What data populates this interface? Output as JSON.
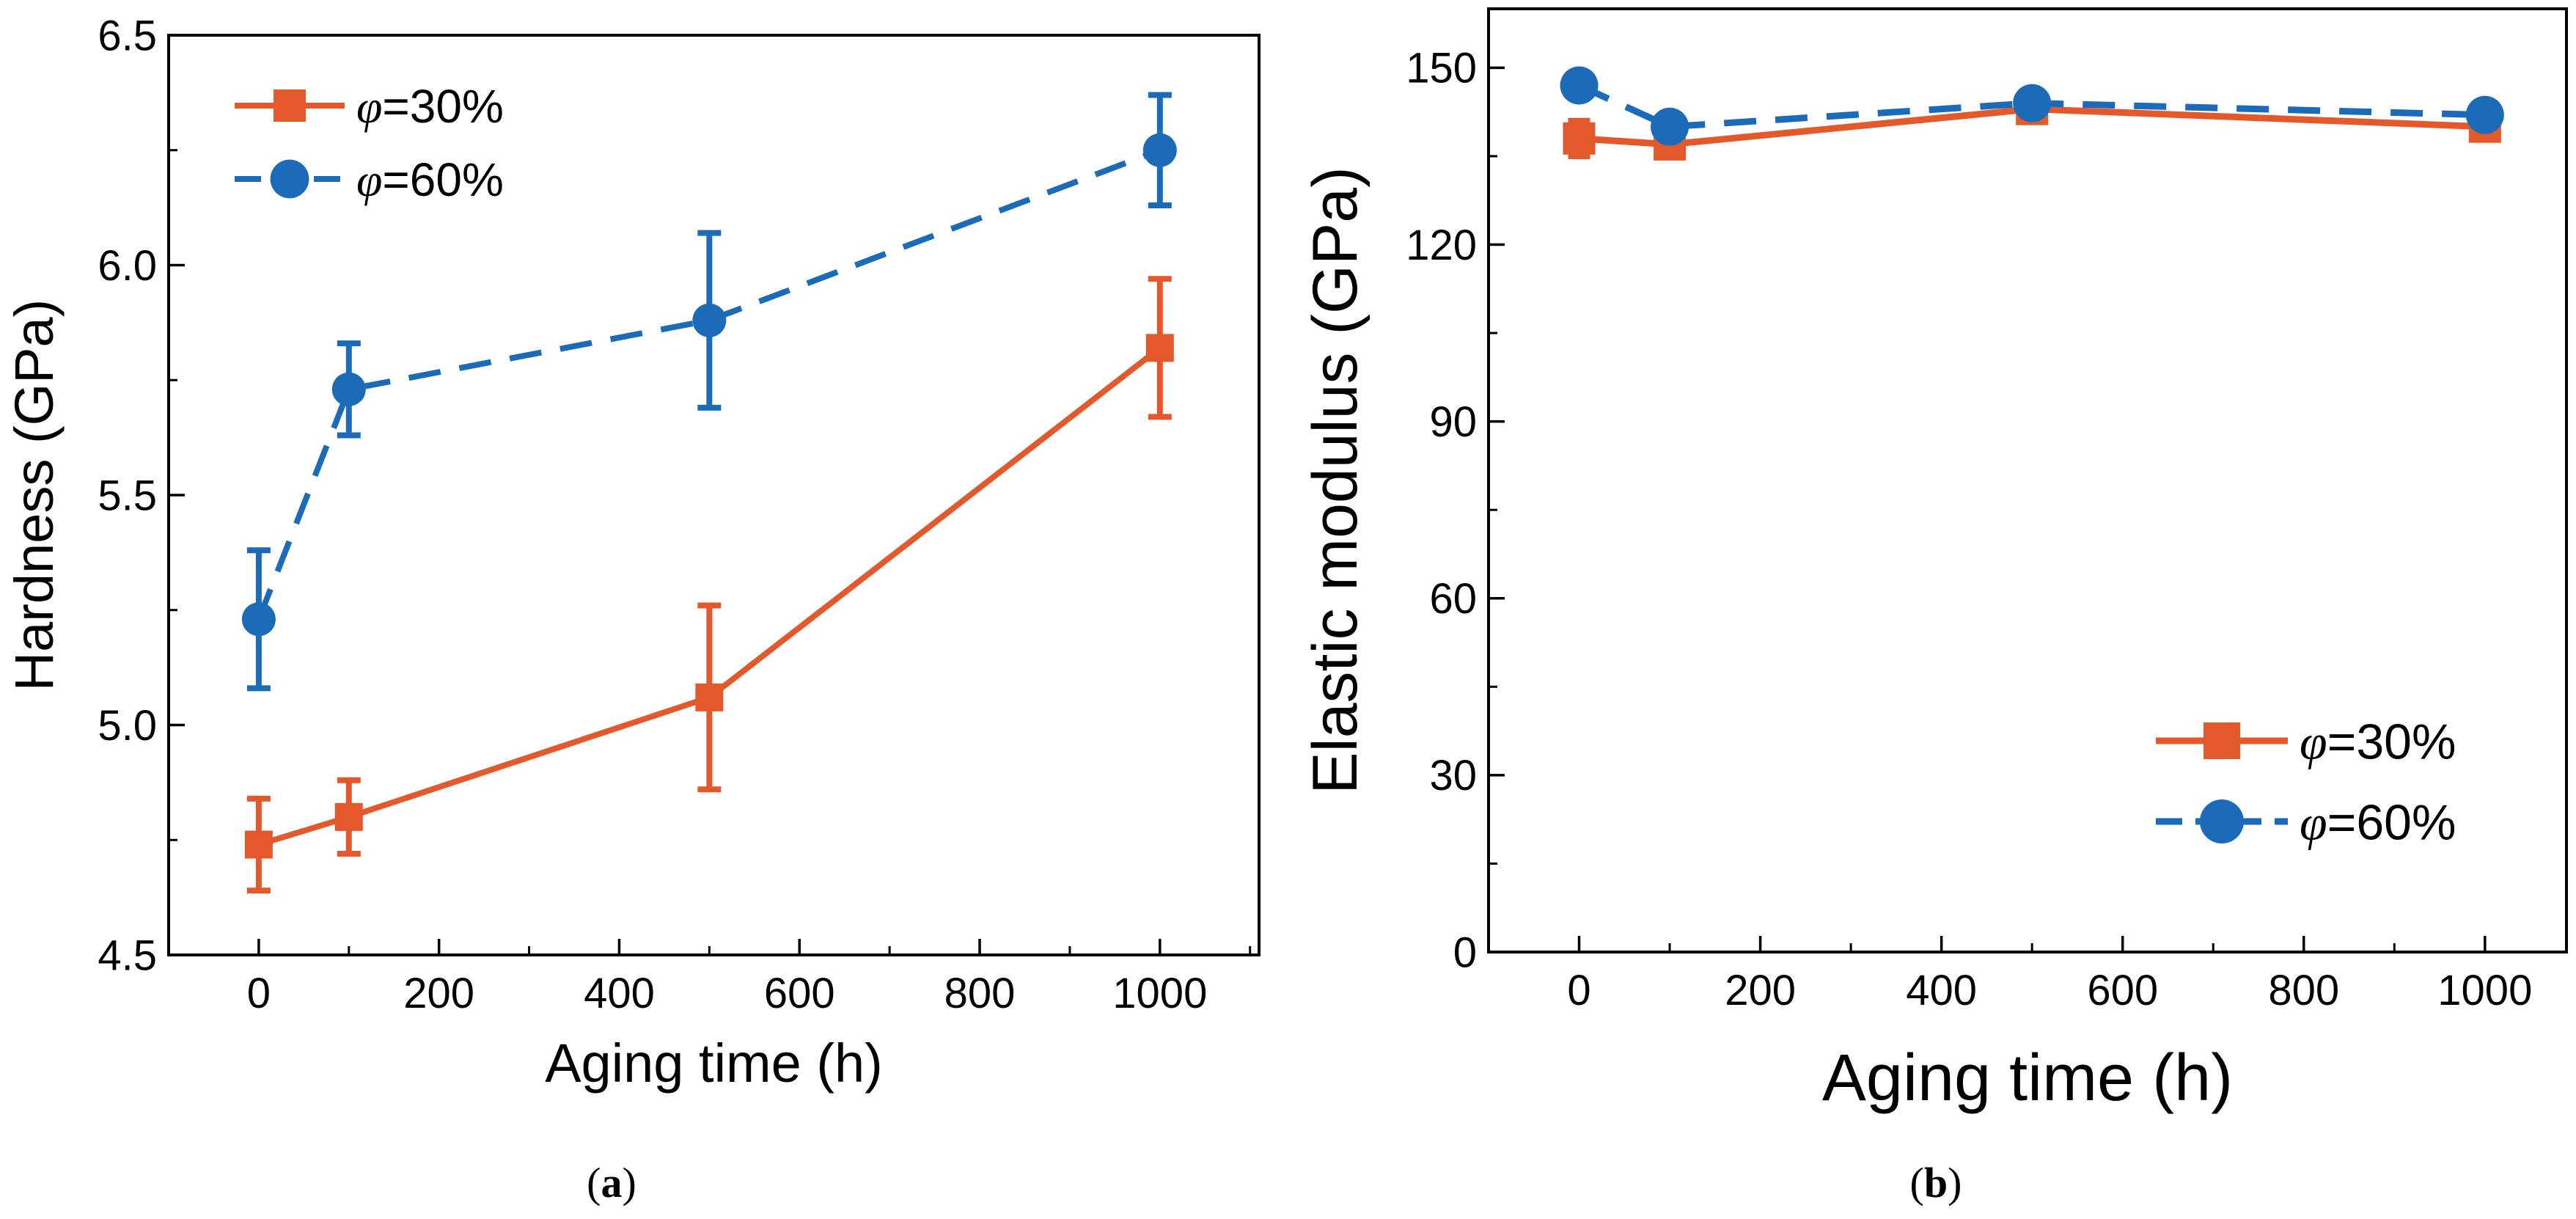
{
  "colors": {
    "s30": "#E3592B",
    "s60": "#1B6BB8",
    "axis": "#000000"
  },
  "legend": {
    "items": [
      {
        "sym": "φ",
        "text": "=30%",
        "series": "s30"
      },
      {
        "sym": "φ",
        "text": "=60%",
        "series": "s60"
      }
    ]
  },
  "chart_data": [
    {
      "id": "a",
      "type": "line",
      "caption_letter": "a",
      "xlabel": "Aging time (h)",
      "ylabel": "Hardness (GPa)",
      "xlim": [
        -100,
        1110
      ],
      "ylim": [
        4.5,
        6.5
      ],
      "xticks": [
        0,
        200,
        400,
        600,
        800,
        1000
      ],
      "xtick_labels": [
        "0",
        "200",
        "400",
        "600",
        "800",
        "1000"
      ],
      "yticks": [
        4.5,
        5.0,
        5.5,
        6.0,
        6.5
      ],
      "ytick_labels": [
        "4.5",
        "5.0",
        "5.5",
        "6.0",
        "6.5"
      ],
      "legend_position": "top-left",
      "series": [
        {
          "key": "s30",
          "name": "φ=30%",
          "marker": "square",
          "line": "solid",
          "x": [
            0,
            100,
            500,
            1000
          ],
          "y": [
            4.74,
            4.8,
            5.06,
            5.82
          ],
          "err": [
            0.1,
            0.08,
            0.2,
            0.15
          ]
        },
        {
          "key": "s60",
          "name": "φ=60%",
          "marker": "circle",
          "line": "dashed",
          "x": [
            0,
            100,
            500,
            1000
          ],
          "y": [
            5.23,
            5.73,
            5.88,
            6.25
          ],
          "err": [
            0.15,
            0.1,
            0.19,
            0.12
          ]
        }
      ]
    },
    {
      "id": "b",
      "type": "line",
      "caption_letter": "b",
      "xlabel": "Aging time (h)",
      "ylabel": "Elastic modulus (GPa)",
      "xlim": [
        -100,
        1090
      ],
      "ylim": [
        0,
        160
      ],
      "xticks": [
        0,
        200,
        400,
        600,
        800,
        1000
      ],
      "xtick_labels": [
        "0",
        "200",
        "400",
        "600",
        "800",
        "1000"
      ],
      "yticks": [
        0,
        30,
        60,
        90,
        120,
        150
      ],
      "ytick_labels": [
        "0",
        "30",
        "60",
        "90",
        "120",
        "150"
      ],
      "legend_position": "bottom-right",
      "series": [
        {
          "key": "s30",
          "name": "φ=30%",
          "marker": "square",
          "line": "solid",
          "x": [
            0,
            100,
            500,
            1000
          ],
          "y": [
            138,
            137,
            143,
            140
          ],
          "err": [
            3,
            2,
            2,
            2
          ]
        },
        {
          "key": "s60",
          "name": "φ=60%",
          "marker": "circle",
          "line": "dashed",
          "x": [
            0,
            100,
            500,
            1000
          ],
          "y": [
            147,
            140,
            144,
            142
          ],
          "err": [
            2,
            2,
            2,
            2
          ]
        }
      ]
    }
  ]
}
